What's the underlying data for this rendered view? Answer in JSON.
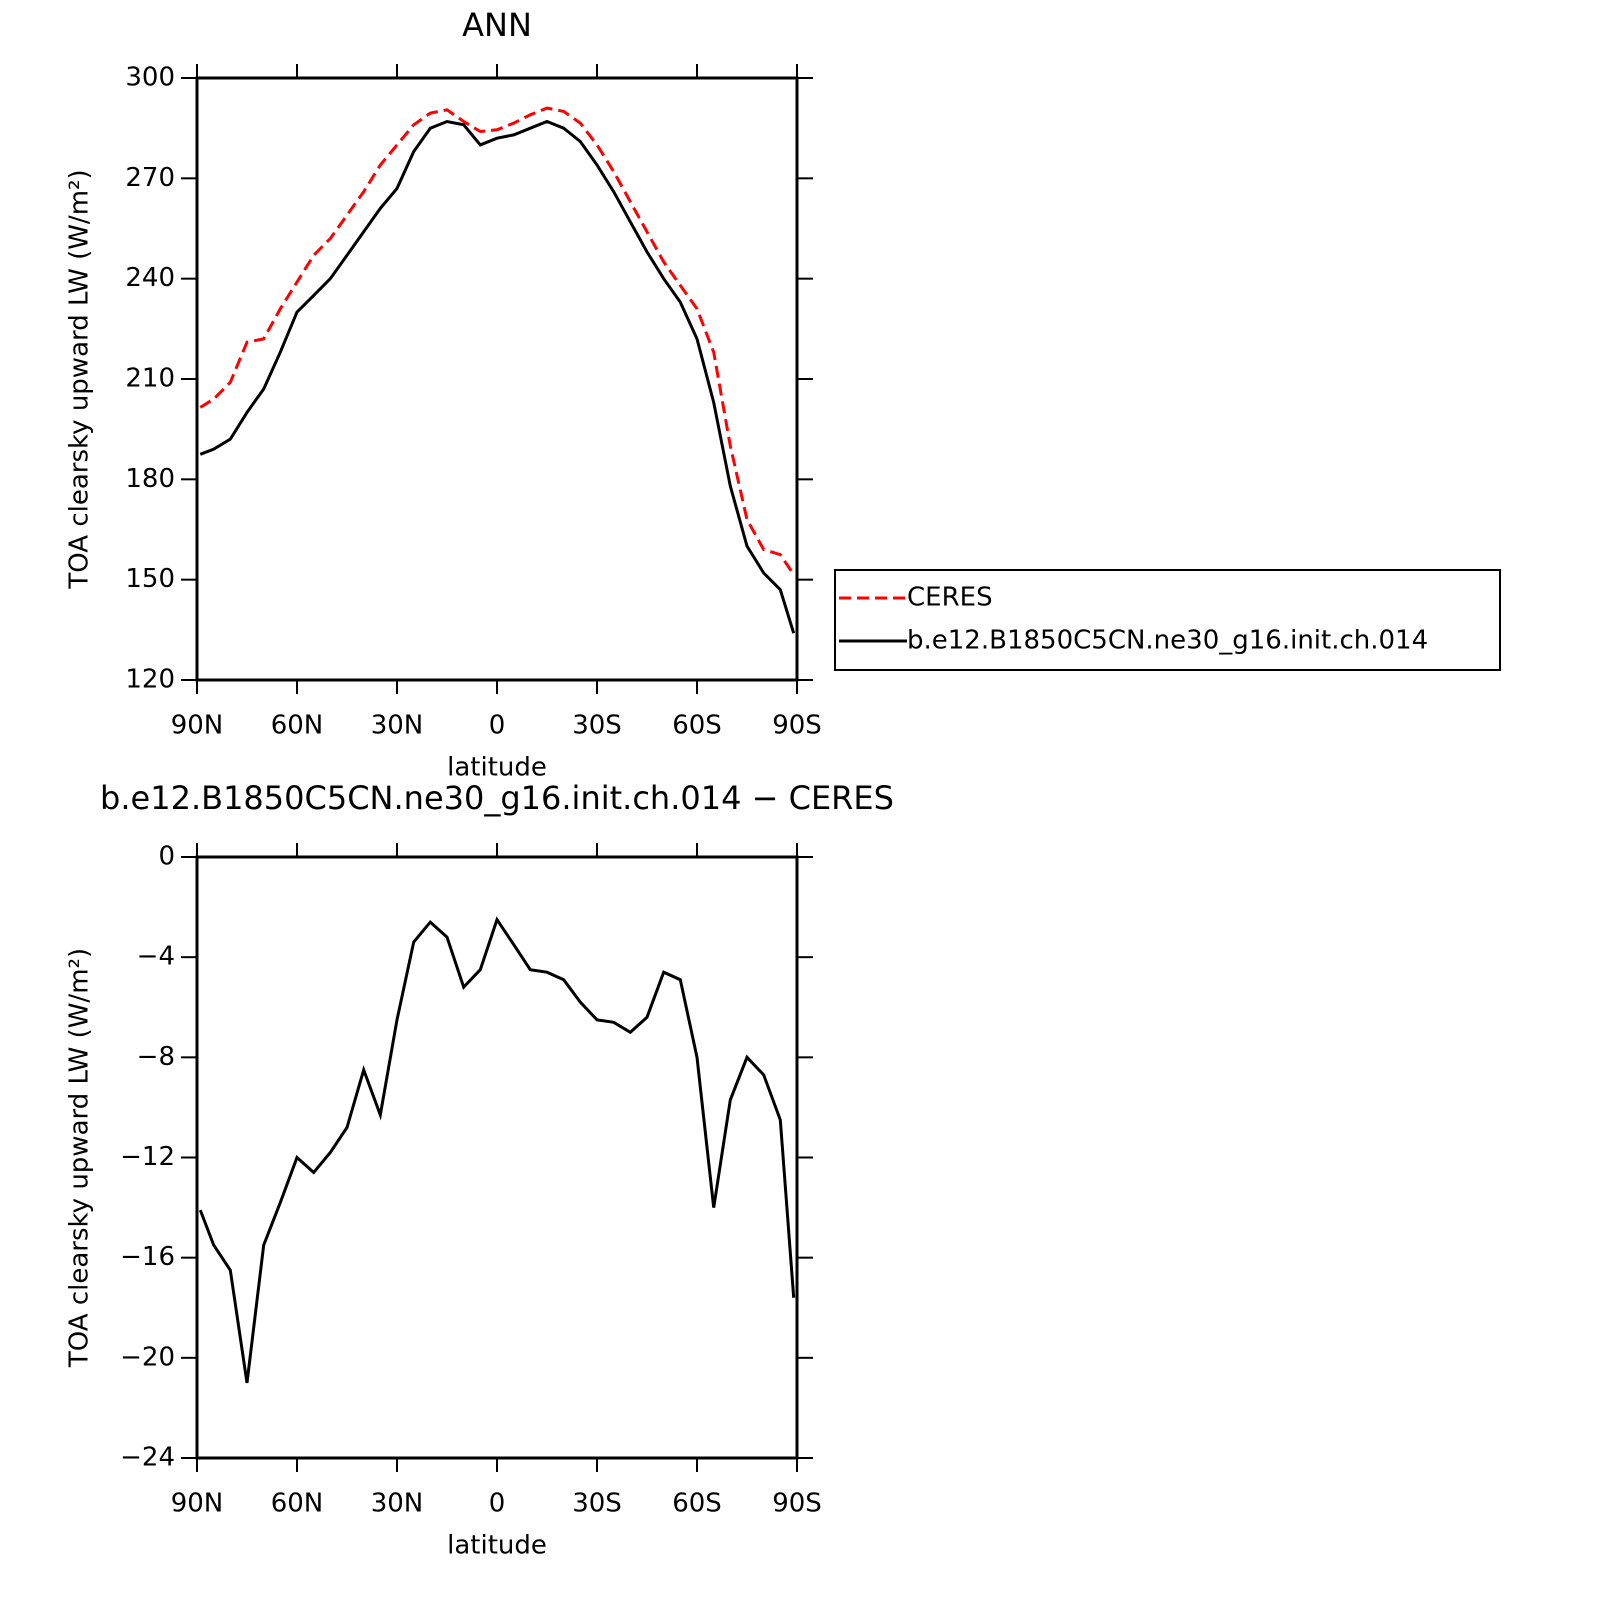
{
  "chart_data": [
    {
      "type": "line",
      "title": "ANN",
      "xlabel": "latitude",
      "ylabel": "TOA clearsky upward LW (W/m²)",
      "x": [
        89,
        85,
        80,
        75,
        70,
        65,
        60,
        55,
        50,
        45,
        40,
        35,
        30,
        25,
        20,
        15,
        10,
        5,
        0,
        -5,
        -10,
        -15,
        -20,
        -25,
        -30,
        -35,
        -40,
        -45,
        -50,
        -55,
        -60,
        -65,
        -70,
        -75,
        -80,
        -85,
        -89
      ],
      "xlim": [
        90,
        -90
      ],
      "xticks": [
        {
          "value": 90,
          "label": "90N"
        },
        {
          "value": 60,
          "label": "60N"
        },
        {
          "value": 30,
          "label": "30N"
        },
        0,
        {
          "value": -30,
          "label": "30S"
        },
        {
          "value": -60,
          "label": "60S"
        },
        {
          "value": -90,
          "label": "90S"
        }
      ],
      "ylim": [
        120,
        300
      ],
      "yticks": [
        120,
        150,
        180,
        210,
        240,
        270,
        300
      ],
      "legend": "right",
      "series": [
        {
          "name": "CERES",
          "color": "#ff0000",
          "dashed": true,
          "values": [
            201.5,
            204,
            209,
            221,
            222,
            231,
            239,
            247,
            252,
            259,
            266,
            274,
            280,
            286,
            289.5,
            290.5,
            287,
            284,
            284.5,
            286.5,
            289,
            291,
            290,
            286.5,
            280,
            272,
            263,
            254,
            245,
            238,
            231,
            218,
            190,
            168,
            159,
            157.5,
            151.5
          ]
        },
        {
          "name": "b.e12.B1850C5CN.ne30_g16.init.ch.014",
          "color": "#000000",
          "dashed": false,
          "values": [
            187.5,
            189,
            192,
            200,
            207,
            218,
            230,
            235,
            240,
            247,
            254,
            261,
            267,
            278,
            285,
            287,
            286,
            280,
            282,
            283,
            285,
            287,
            285,
            281,
            274,
            266,
            257,
            248,
            240,
            233,
            222,
            203,
            178,
            160,
            152,
            147,
            134
          ]
        }
      ]
    },
    {
      "type": "line",
      "title": "b.e12.B1850C5CN.ne30_g16.init.ch.014 − CERES",
      "xlabel": "latitude",
      "ylabel": "TOA clearsky upward LW (W/m²)",
      "x": [
        89,
        85,
        80,
        75,
        70,
        65,
        60,
        55,
        50,
        45,
        40,
        35,
        30,
        25,
        20,
        15,
        10,
        5,
        0,
        -5,
        -10,
        -15,
        -20,
        -25,
        -30,
        -35,
        -40,
        -45,
        -50,
        -55,
        -60,
        -65,
        -70,
        -75,
        -80,
        -85,
        -89
      ],
      "xlim": [
        90,
        -90
      ],
      "xticks": [
        {
          "value": 90,
          "label": "90N"
        },
        {
          "value": 60,
          "label": "60N"
        },
        {
          "value": 30,
          "label": "30N"
        },
        0,
        {
          "value": -30,
          "label": "30S"
        },
        {
          "value": -60,
          "label": "60S"
        },
        {
          "value": -90,
          "label": "90S"
        }
      ],
      "ylim": [
        -24,
        0
      ],
      "yticks": [
        {
          "value": -24,
          "label": "−24"
        },
        {
          "value": -20,
          "label": "−20"
        },
        {
          "value": -16,
          "label": "−16"
        },
        {
          "value": -12,
          "label": "−12"
        },
        {
          "value": -8,
          "label": "−8"
        },
        {
          "value": -4,
          "label": "−4"
        },
        0
      ],
      "series": [
        {
          "color": "#000000",
          "dashed": false,
          "values": [
            -14.1,
            -15.5,
            -16.5,
            -21,
            -15.5,
            -13.8,
            -12,
            -12.6,
            -11.8,
            -10.8,
            -8.5,
            -10.3,
            -6.5,
            -3.4,
            -2.6,
            -3.2,
            -5.2,
            -4.5,
            -2.5,
            -3.5,
            -4.5,
            -4.6,
            -4.9,
            -5.8,
            -6.5,
            -6.6,
            -7.0,
            -6.4,
            -4.6,
            -4.9,
            -8.0,
            -14.0,
            -9.7,
            -8.0,
            -8.7,
            -10.5,
            -17.6
          ]
        }
      ]
    }
  ]
}
